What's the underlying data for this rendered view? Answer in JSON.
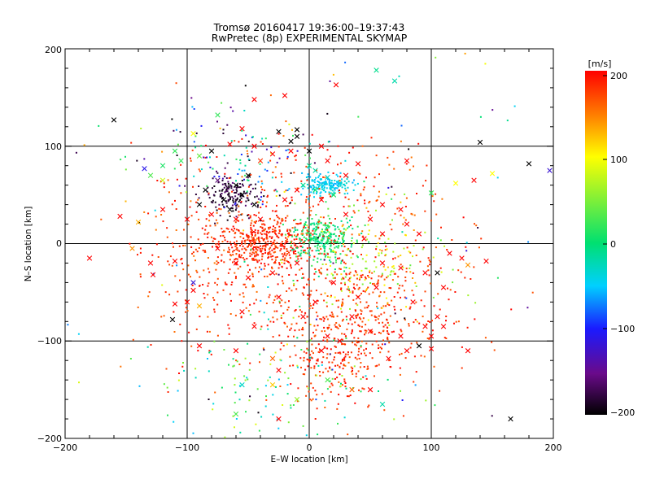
{
  "chart_data": {
    "type": "scatter",
    "title": "Tromsø 20160417 19:36:00–19:37:43",
    "subtitle": "RwPretec (8p) EXPERIMENTAL SKYMAP",
    "xlabel": "E–W location [km]",
    "ylabel": "N–S location [km]",
    "xlim": [
      -200,
      200
    ],
    "ylim": [
      -200,
      200
    ],
    "x_ticks": [
      "−200",
      "−100",
      "0",
      "100",
      "200"
    ],
    "y_ticks": [
      "−200",
      "−100",
      "0",
      "100",
      "200"
    ],
    "grid": true,
    "markers": [
      "dot",
      "x"
    ],
    "colorbar": {
      "label": "[m/s]",
      "range": [
        -200,
        200
      ],
      "ticks": [
        "200",
        "100",
        "0",
        "−100",
        "−200"
      ],
      "colormap": [
        "#000000",
        "#6a0a8a",
        "#1a1aff",
        "#00d0ff",
        "#00e070",
        "#ffff00",
        "#ff8000",
        "#ff0000"
      ]
    },
    "points": [
      {
        "x": -160,
        "y": 127,
        "v": -200,
        "m": "x"
      },
      {
        "x": -75,
        "y": 132,
        "v": 20,
        "m": "x"
      },
      {
        "x": -45,
        "y": 148,
        "v": 200,
        "m": "x"
      },
      {
        "x": -20,
        "y": 152,
        "v": 200,
        "m": "x"
      },
      {
        "x": 22,
        "y": 163,
        "v": 200,
        "m": "x"
      },
      {
        "x": 55,
        "y": 178,
        "v": -10,
        "m": "x"
      },
      {
        "x": 70,
        "y": 167,
        "v": -20,
        "m": "x"
      },
      {
        "x": -10,
        "y": 117,
        "v": -200,
        "m": "x"
      },
      {
        "x": -25,
        "y": 115,
        "v": -200,
        "m": "x"
      },
      {
        "x": -95,
        "y": 113,
        "v": 100,
        "m": "x"
      },
      {
        "x": -55,
        "y": 118,
        "v": 200,
        "m": "x"
      },
      {
        "x": -65,
        "y": 102,
        "v": 200,
        "m": "x"
      },
      {
        "x": -110,
        "y": 95,
        "v": 20,
        "m": "x"
      },
      {
        "x": -135,
        "y": 77,
        "v": -110,
        "m": "x"
      },
      {
        "x": -120,
        "y": 65,
        "v": 80,
        "m": "x"
      },
      {
        "x": -40,
        "y": 85,
        "v": 180,
        "m": "x"
      },
      {
        "x": 40,
        "y": 82,
        "v": 200,
        "m": "x"
      },
      {
        "x": 80,
        "y": 85,
        "v": 200,
        "m": "x"
      },
      {
        "x": 100,
        "y": 52,
        "v": 20,
        "m": "x"
      },
      {
        "x": 120,
        "y": 62,
        "v": 100,
        "m": "x"
      },
      {
        "x": 135,
        "y": 65,
        "v": 200,
        "m": "x"
      },
      {
        "x": 150,
        "y": 72,
        "v": 100,
        "m": "x"
      },
      {
        "x": 180,
        "y": 82,
        "v": -200,
        "m": "x"
      },
      {
        "x": 197,
        "y": 75,
        "v": -120,
        "m": "x"
      },
      {
        "x": 140,
        "y": 104,
        "v": -200,
        "m": "x"
      },
      {
        "x": -155,
        "y": 28,
        "v": 200,
        "m": "x"
      },
      {
        "x": -140,
        "y": 22,
        "v": 130,
        "m": "x"
      },
      {
        "x": -120,
        "y": 35,
        "v": 200,
        "m": "x"
      },
      {
        "x": -100,
        "y": 25,
        "v": 200,
        "m": "x"
      },
      {
        "x": -180,
        "y": -15,
        "v": 200,
        "m": "x"
      },
      {
        "x": -145,
        "y": -5,
        "v": 140,
        "m": "x"
      },
      {
        "x": -130,
        "y": -20,
        "v": 200,
        "m": "x"
      },
      {
        "x": -110,
        "y": -18,
        "v": 200,
        "m": "x"
      },
      {
        "x": -128,
        "y": -32,
        "v": 200,
        "m": "x"
      },
      {
        "x": -95,
        "y": -48,
        "v": 200,
        "m": "x"
      },
      {
        "x": -100,
        "y": -60,
        "v": 200,
        "m": "x"
      },
      {
        "x": -110,
        "y": -62,
        "v": 200,
        "m": "x"
      },
      {
        "x": -90,
        "y": -64,
        "v": 130,
        "m": "x"
      },
      {
        "x": -112,
        "y": -78,
        "v": -200,
        "m": "x"
      },
      {
        "x": -95,
        "y": -40,
        "v": -120,
        "m": "x"
      },
      {
        "x": -55,
        "y": -70,
        "v": 200,
        "m": "x"
      },
      {
        "x": -90,
        "y": -105,
        "v": 200,
        "m": "x"
      },
      {
        "x": -60,
        "y": -110,
        "v": 200,
        "m": "x"
      },
      {
        "x": -30,
        "y": -118,
        "v": 160,
        "m": "x"
      },
      {
        "x": -25,
        "y": -130,
        "v": 200,
        "m": "x"
      },
      {
        "x": -30,
        "y": -145,
        "v": 120,
        "m": "x"
      },
      {
        "x": -55,
        "y": -145,
        "v": -30,
        "m": "x"
      },
      {
        "x": -60,
        "y": -175,
        "v": 30,
        "m": "x"
      },
      {
        "x": -25,
        "y": -180,
        "v": 200,
        "m": "x"
      },
      {
        "x": -10,
        "y": -160,
        "v": 60,
        "m": "x"
      },
      {
        "x": 15,
        "y": -140,
        "v": 30,
        "m": "x"
      },
      {
        "x": 35,
        "y": -150,
        "v": 160,
        "m": "x"
      },
      {
        "x": 50,
        "y": -150,
        "v": 200,
        "m": "x"
      },
      {
        "x": 60,
        "y": -165,
        "v": -20,
        "m": "x"
      },
      {
        "x": 65,
        "y": -118,
        "v": 200,
        "m": "x"
      },
      {
        "x": 80,
        "y": -110,
        "v": 200,
        "m": "x"
      },
      {
        "x": 100,
        "y": -108,
        "v": 200,
        "m": "x"
      },
      {
        "x": 90,
        "y": -105,
        "v": -200,
        "m": "x"
      },
      {
        "x": 100,
        "y": -95,
        "v": 200,
        "m": "x"
      },
      {
        "x": 110,
        "y": -85,
        "v": 200,
        "m": "x"
      },
      {
        "x": 105,
        "y": -75,
        "v": 200,
        "m": "x"
      },
      {
        "x": 95,
        "y": -85,
        "v": 200,
        "m": "x"
      },
      {
        "x": 75,
        "y": -95,
        "v": 200,
        "m": "x"
      },
      {
        "x": 85,
        "y": -60,
        "v": 200,
        "m": "x"
      },
      {
        "x": 105,
        "y": -30,
        "v": -200,
        "m": "x"
      },
      {
        "x": 115,
        "y": -10,
        "v": 200,
        "m": "x"
      },
      {
        "x": 125,
        "y": -15,
        "v": 200,
        "m": "x"
      },
      {
        "x": 130,
        "y": -22,
        "v": 140,
        "m": "x"
      },
      {
        "x": 145,
        "y": -18,
        "v": 200,
        "m": "x"
      },
      {
        "x": 110,
        "y": -45,
        "v": 200,
        "m": "x"
      },
      {
        "x": 95,
        "y": -30,
        "v": 200,
        "m": "x"
      },
      {
        "x": 75,
        "y": -25,
        "v": 200,
        "m": "x"
      },
      {
        "x": 60,
        "y": -20,
        "v": 200,
        "m": "x"
      },
      {
        "x": 165,
        "y": -180,
        "v": -200,
        "m": "x"
      },
      {
        "x": 130,
        "y": -110,
        "v": 200,
        "m": "x"
      },
      {
        "x": -60,
        "y": 60,
        "v": -200,
        "m": "x"
      },
      {
        "x": -55,
        "y": 50,
        "v": -200,
        "m": "x"
      },
      {
        "x": -70,
        "y": 45,
        "v": -200,
        "m": "x"
      },
      {
        "x": -85,
        "y": 55,
        "v": -200,
        "m": "x"
      },
      {
        "x": -50,
        "y": 70,
        "v": -200,
        "m": "x"
      },
      {
        "x": -75,
        "y": 65,
        "v": -160,
        "m": "x"
      },
      {
        "x": -90,
        "y": 40,
        "v": -200,
        "m": "x"
      },
      {
        "x": -65,
        "y": 35,
        "v": -200,
        "m": "x"
      },
      {
        "x": -45,
        "y": 40,
        "v": -200,
        "m": "x"
      },
      {
        "x": -80,
        "y": 30,
        "v": 200,
        "m": "x"
      },
      {
        "x": -60,
        "y": 25,
        "v": 200,
        "m": "x"
      },
      {
        "x": -40,
        "y": 25,
        "v": 200,
        "m": "x"
      },
      {
        "x": -20,
        "y": 45,
        "v": 200,
        "m": "x"
      },
      {
        "x": -10,
        "y": 55,
        "v": 200,
        "m": "x"
      },
      {
        "x": 10,
        "y": 45,
        "v": 200,
        "m": "x"
      },
      {
        "x": 30,
        "y": 30,
        "v": 200,
        "m": "x"
      },
      {
        "x": 50,
        "y": 25,
        "v": 200,
        "m": "x"
      },
      {
        "x": 60,
        "y": 40,
        "v": 200,
        "m": "x"
      },
      {
        "x": 80,
        "y": 20,
        "v": 200,
        "m": "x"
      },
      {
        "x": 90,
        "y": 10,
        "v": 200,
        "m": "x"
      },
      {
        "x": 30,
        "y": 70,
        "v": 200,
        "m": "x"
      },
      {
        "x": 15,
        "y": 85,
        "v": 200,
        "m": "x"
      },
      {
        "x": 0,
        "y": 95,
        "v": -200,
        "m": "x"
      },
      {
        "x": 10,
        "y": 100,
        "v": 200,
        "m": "x"
      },
      {
        "x": -15,
        "y": 95,
        "v": 200,
        "m": "x"
      },
      {
        "x": -30,
        "y": 92,
        "v": 200,
        "m": "x"
      },
      {
        "x": -15,
        "y": 105,
        "v": -200,
        "m": "x"
      },
      {
        "x": -10,
        "y": 110,
        "v": -200,
        "m": "x"
      },
      {
        "x": -45,
        "y": 100,
        "v": 200,
        "m": "x"
      },
      {
        "x": -80,
        "y": 95,
        "v": -200,
        "m": "x"
      },
      {
        "x": -90,
        "y": 90,
        "v": 40,
        "m": "x"
      },
      {
        "x": -105,
        "y": 85,
        "v": 20,
        "m": "x"
      },
      {
        "x": -120,
        "y": 80,
        "v": 10,
        "m": "x"
      },
      {
        "x": -130,
        "y": 70,
        "v": 30,
        "m": "x"
      },
      {
        "x": 0,
        "y": 80,
        "v": -10,
        "m": "x"
      },
      {
        "x": 5,
        "y": 75,
        "v": -20,
        "m": "x"
      },
      {
        "x": 15,
        "y": 68,
        "v": -30,
        "m": "x"
      },
      {
        "x": 25,
        "y": 62,
        "v": -40,
        "m": "x"
      },
      {
        "x": -5,
        "y": 60,
        "v": -10,
        "m": "x"
      },
      {
        "x": 5,
        "y": 55,
        "v": 0,
        "m": "x"
      },
      {
        "x": 20,
        "y": 50,
        "v": 10,
        "m": "x"
      },
      {
        "x": -10,
        "y": -20,
        "v": 200,
        "m": "x"
      },
      {
        "x": -30,
        "y": -30,
        "v": 200,
        "m": "x"
      },
      {
        "x": -50,
        "y": -35,
        "v": 200,
        "m": "x"
      },
      {
        "x": -60,
        "y": -20,
        "v": 200,
        "m": "x"
      },
      {
        "x": -75,
        "y": -5,
        "v": 200,
        "m": "x"
      },
      {
        "x": 20,
        "y": -40,
        "v": 200,
        "m": "x"
      },
      {
        "x": 40,
        "y": -55,
        "v": 200,
        "m": "x"
      },
      {
        "x": 55,
        "y": -45,
        "v": 200,
        "m": "x"
      },
      {
        "x": 35,
        "y": -75,
        "v": 200,
        "m": "x"
      },
      {
        "x": 15,
        "y": -95,
        "v": 200,
        "m": "x"
      },
      {
        "x": 10,
        "y": -110,
        "v": 200,
        "m": "x"
      },
      {
        "x": 25,
        "y": -100,
        "v": 200,
        "m": "x"
      },
      {
        "x": 50,
        "y": -90,
        "v": 200,
        "m": "x"
      },
      {
        "x": 5,
        "y": -60,
        "v": 200,
        "m": "x"
      },
      {
        "x": -5,
        "y": -75,
        "v": 200,
        "m": "x"
      },
      {
        "x": -25,
        "y": -55,
        "v": 200,
        "m": "x"
      },
      {
        "x": -45,
        "y": -85,
        "v": 200,
        "m": "x"
      },
      {
        "x": 45,
        "y": 5,
        "v": 200,
        "m": "x"
      },
      {
        "x": 60,
        "y": 10,
        "v": 200,
        "m": "x"
      },
      {
        "x": 75,
        "y": 35,
        "v": 200,
        "m": "x"
      }
    ],
    "clusters": [
      {
        "x": -40,
        "y": 0,
        "sx": 22,
        "sy": 14,
        "n": 420,
        "v": [
          170,
          200
        ]
      },
      {
        "x": 10,
        "y": 5,
        "sx": 14,
        "sy": 12,
        "n": 280,
        "v": [
          -20,
          30
        ]
      },
      {
        "x": 15,
        "y": 60,
        "sx": 10,
        "sy": 5,
        "n": 160,
        "v": [
          -60,
          -30
        ]
      },
      {
        "x": -62,
        "y": 50,
        "sx": 12,
        "sy": 10,
        "n": 150,
        "v": [
          -200,
          -160
        ]
      },
      {
        "x": 40,
        "y": -70,
        "sx": 40,
        "sy": 38,
        "n": 500,
        "v": [
          160,
          200
        ]
      },
      {
        "x": 0,
        "y": 40,
        "sx": 55,
        "sy": 35,
        "n": 250,
        "v": [
          150,
          200
        ]
      },
      {
        "x": -80,
        "y": -30,
        "sx": 30,
        "sy": 40,
        "n": 200,
        "v": [
          150,
          200
        ]
      },
      {
        "x": 20,
        "y": -120,
        "sx": 18,
        "sy": 25,
        "n": 150,
        "v": [
          160,
          200
        ]
      },
      {
        "x": -30,
        "y": -150,
        "sx": 45,
        "sy": 30,
        "n": 120,
        "v": [
          -60,
          90
        ]
      },
      {
        "x": 50,
        "y": -20,
        "sx": 30,
        "sy": 30,
        "n": 150,
        "v": [
          40,
          140
        ]
      },
      {
        "x": 0,
        "y": 0,
        "sx": 110,
        "sy": 110,
        "n": 180,
        "v": [
          -200,
          200
        ]
      },
      {
        "x": -60,
        "y": 80,
        "sx": 30,
        "sy": 25,
        "n": 100,
        "v": [
          -200,
          40
        ]
      }
    ]
  }
}
